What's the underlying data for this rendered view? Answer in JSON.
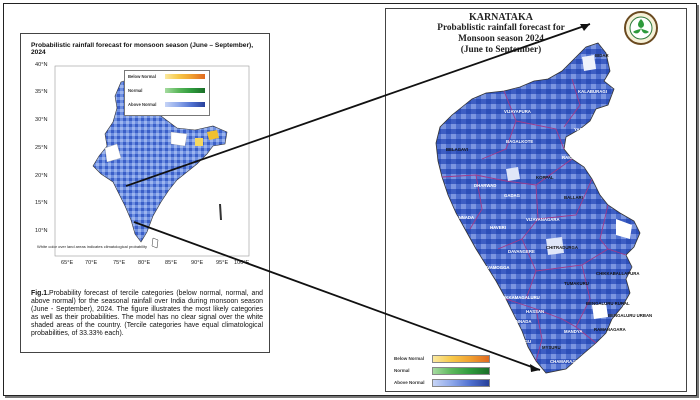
{
  "left_panel": {
    "title": "Probabilistic rainfall forecast for monsoon season (June – September), 2024",
    "lat_labels": [
      "40°N",
      "35°N",
      "30°N",
      "25°N",
      "20°N",
      "15°N",
      "10°N"
    ],
    "lon_labels": [
      "65°E",
      "70°E",
      "75°E",
      "80°E",
      "85°E",
      "90°E",
      "95°E",
      "100°E"
    ],
    "legend": {
      "below_normal": "Below Normal",
      "normal": "Normal",
      "above_normal": "Above Normal"
    },
    "map_note": "White color over land areas indicates climatological probability",
    "caption_fig": "Fig.1.",
    "caption_text": "Probability forecast of tercile categories (below normal, normal, and above normal) for the seasonal rainfall over India during monsoon season (June - September), 2024. The figure illustrates the most likely categories as well as their probabilities. The model has no clear signal over the white shaded areas of the country. (Tercile categories have equal climatological probabilities, of 33.33% each)."
  },
  "right_panel": {
    "title_line1": "KARNATAKA",
    "title_line2": "Probablistic rainfall forecast for",
    "title_line3": "Monsoon season 2024",
    "title_line4": "(June to September)",
    "emblem": "ksndmc-emblem",
    "legend": {
      "below_normal": "Below Normal",
      "normal": "Normal",
      "above_normal": "Above Normal"
    },
    "districts": [
      "BIDAR",
      "KALABURAGI",
      "VIJAYAPURA",
      "BELAGAVI",
      "BAGALKOTE",
      "YADGIR",
      "RAICHUR",
      "KOPPAL",
      "GADAG",
      "DHARWAD",
      "UTTARA KANNADA",
      "HAVERI",
      "BALLARI",
      "VIJAYANAGARA",
      "DAVANGERE",
      "CHITRADURGA",
      "SHIVAMOGGA",
      "UDUPI",
      "CHIKKAMAGALURU",
      "TUMAKURU",
      "CHIKKABALLAPURA",
      "KOLAR",
      "HASSAN",
      "DAKSHINA KANNADA",
      "KODAGU",
      "MYSURU",
      "MANDYA",
      "RAMANAGARA",
      "BENGALURU RURAL",
      "BENGALURU URBAN",
      "CHAMARAJANAGARA"
    ]
  },
  "colors": {
    "above_normal": "#3b5fc8",
    "normal": "#2e9a3c",
    "below_normal": "#f0c030",
    "district_border": "#a03a8a"
  }
}
